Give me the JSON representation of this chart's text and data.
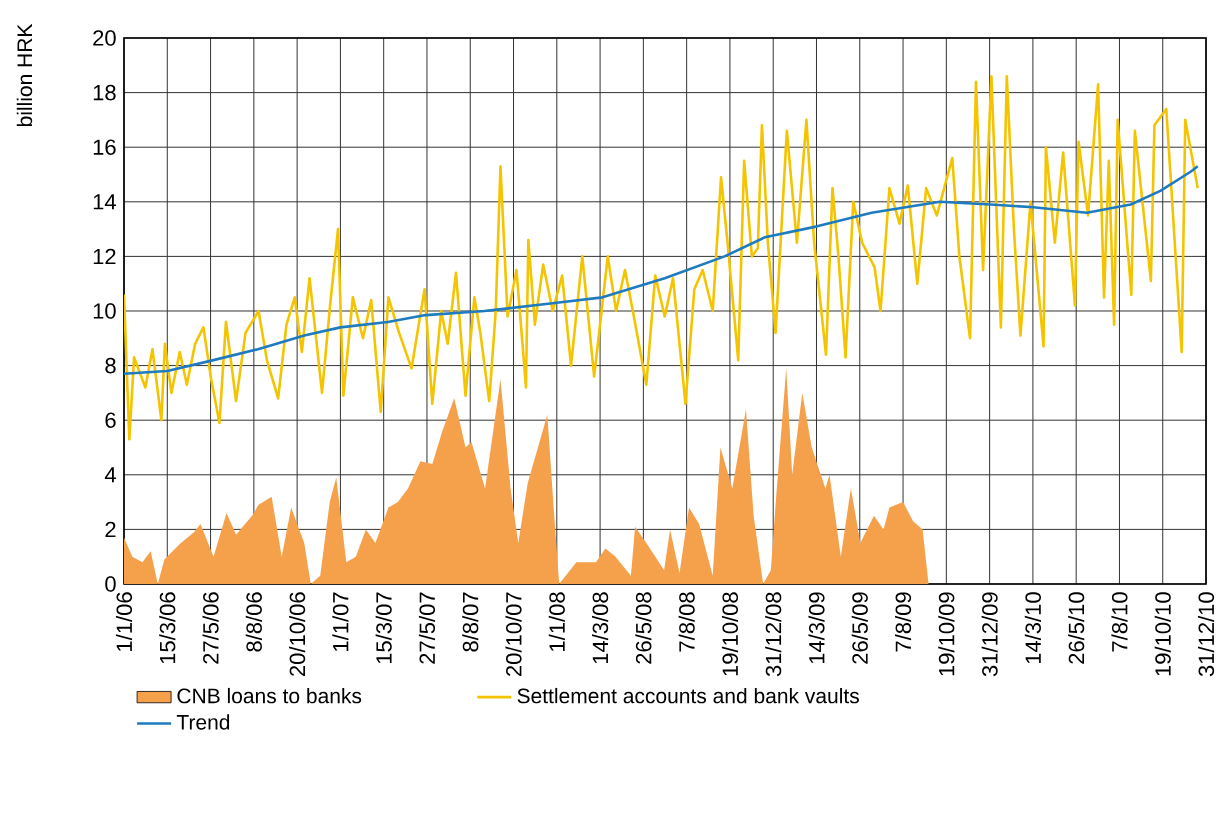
{
  "chart_data": {
    "type": "line",
    "ylabel": "billion HRK",
    "xlim": [
      "2006-01-01",
      "2010-12-31"
    ],
    "ylim": [
      0,
      20
    ],
    "yticks": [
      0,
      2,
      4,
      6,
      8,
      10,
      12,
      14,
      16,
      18,
      20
    ],
    "xticks": [
      {
        "value": "2006-01-01",
        "label": "1/1/06"
      },
      {
        "value": "2006-03-15",
        "label": "15/3/06"
      },
      {
        "value": "2006-05-27",
        "label": "27/5/06"
      },
      {
        "value": "2006-08-08",
        "label": "8/8/06"
      },
      {
        "value": "2006-10-20",
        "label": "20/10/06"
      },
      {
        "value": "2007-01-01",
        "label": "1/1/07"
      },
      {
        "value": "2007-03-15",
        "label": "15/3/07"
      },
      {
        "value": "2007-05-27",
        "label": "27/5/07"
      },
      {
        "value": "2007-08-08",
        "label": "8/8/07"
      },
      {
        "value": "2007-10-20",
        "label": "20/10/07"
      },
      {
        "value": "2008-01-01",
        "label": "1/1/08"
      },
      {
        "value": "2008-03-14",
        "label": "14/3/08"
      },
      {
        "value": "2008-05-26",
        "label": "26/5/08"
      },
      {
        "value": "2008-08-07",
        "label": "7/8/08"
      },
      {
        "value": "2008-10-19",
        "label": "19/10/08"
      },
      {
        "value": "2008-12-31",
        "label": "31/12/08"
      },
      {
        "value": "2009-03-14",
        "label": "14/3/09"
      },
      {
        "value": "2009-05-26",
        "label": "26/5/09"
      },
      {
        "value": "2009-08-07",
        "label": "7/8/09"
      },
      {
        "value": "2009-10-19",
        "label": "19/10/09"
      },
      {
        "value": "2009-12-31",
        "label": "31/12/09"
      },
      {
        "value": "2010-03-14",
        "label": "14/3/10"
      },
      {
        "value": "2010-05-26",
        "label": "26/5/10"
      },
      {
        "value": "2010-08-07",
        "label": "7/8/10"
      },
      {
        "value": "2010-10-19",
        "label": "19/10/10"
      },
      {
        "value": "2010-12-31",
        "label": "31/12/10"
      }
    ],
    "grid": true,
    "legend": "bottom",
    "series": [
      {
        "name": "CNB loans to banks",
        "type": "area",
        "color": "#f5a04a",
        "x": [
          "2006-01-01",
          "2006-01-15",
          "2006-02-01",
          "2006-02-15",
          "2006-02-27",
          "2006-03-10",
          "2006-04-07",
          "2006-04-29",
          "2006-05-10",
          "2006-06-01",
          "2006-06-23",
          "2006-07-09",
          "2006-08-05",
          "2006-08-16",
          "2006-09-07",
          "2006-09-24",
          "2006-10-10",
          "2006-11-01",
          "2006-11-12",
          "2006-11-28",
          "2006-12-14",
          "2006-12-25",
          "2007-01-11",
          "2007-01-27",
          "2007-02-13",
          "2007-03-01",
          "2007-03-23",
          "2007-04-08",
          "2007-04-25",
          "2007-05-16",
          "2007-06-05",
          "2007-06-22",
          "2007-07-12",
          "2007-07-31",
          "2007-08-10",
          "2007-09-02",
          "2007-09-28",
          "2007-10-15",
          "2007-10-28",
          "2007-11-13",
          "2007-12-16",
          "2007-12-26",
          "2008-01-05",
          "2008-02-03",
          "2008-03-07",
          "2008-03-23",
          "2008-04-09",
          "2008-05-05",
          "2008-05-12",
          "2008-05-31",
          "2008-06-30",
          "2008-07-10",
          "2008-07-26",
          "2008-08-11",
          "2008-08-28",
          "2008-09-20",
          "2008-10-03",
          "2008-10-23",
          "2008-11-15",
          "2008-11-28",
          "2008-12-14",
          "2008-12-27",
          "2009-01-06",
          "2009-01-22",
          "2009-02-01",
          "2009-02-18",
          "2009-03-06",
          "2009-03-29",
          "2009-04-05",
          "2009-04-24",
          "2009-05-11",
          "2009-05-27",
          "2009-06-19",
          "2009-07-05",
          "2009-07-15",
          "2009-08-07",
          "2009-08-24",
          "2009-09-09",
          "2009-09-19"
        ],
        "values": [
          1.7,
          1.0,
          0.8,
          1.2,
          0,
          0.9,
          1.5,
          1.9,
          2.2,
          1.0,
          2.6,
          1.8,
          2.5,
          2.9,
          3.2,
          1.0,
          2.8,
          1.5,
          0,
          0.3,
          3.0,
          3.9,
          0.8,
          1.0,
          2.0,
          1.5,
          2.8,
          3.0,
          3.5,
          4.5,
          4.4,
          5.6,
          6.8,
          5.0,
          5.2,
          3.5,
          7.5,
          3.5,
          1.5,
          3.7,
          6.2,
          3.0,
          0,
          0.8,
          0.8,
          1.3,
          1.0,
          0.3,
          2.1,
          1.5,
          0.5,
          2.0,
          0.4,
          2.8,
          2.2,
          0.3,
          5.0,
          3.5,
          6.4,
          2.5,
          0,
          0.5,
          3.5,
          7.9,
          4.0,
          7.0,
          5.0,
          3.5,
          4.0,
          1.0,
          3.5,
          1.5,
          2.5,
          2.0,
          2.8,
          3.0,
          2.3,
          2.0,
          0
        ]
      },
      {
        "name": "Settlement accounts and bank vaults",
        "color": "#f5c400",
        "x": [
          "2006-01-01",
          "2006-01-10",
          "2006-01-18",
          "2006-02-06",
          "2006-02-18",
          "2006-03-05",
          "2006-03-11",
          "2006-03-22",
          "2006-04-05",
          "2006-04-17",
          "2006-05-01",
          "2006-05-15",
          "2006-05-28",
          "2006-06-11",
          "2006-06-22",
          "2006-07-09",
          "2006-07-25",
          "2006-08-16",
          "2006-08-30",
          "2006-09-18",
          "2006-10-02",
          "2006-10-16",
          "2006-10-28",
          "2006-11-10",
          "2006-12-01",
          "2006-12-15",
          "2006-12-28",
          "2007-01-06",
          "2007-01-22",
          "2007-02-08",
          "2007-02-22",
          "2007-03-10",
          "2007-03-23",
          "2007-04-10",
          "2007-05-01",
          "2007-05-23",
          "2007-06-05",
          "2007-06-20",
          "2007-07-01",
          "2007-07-15",
          "2007-07-31",
          "2007-08-15",
          "2007-08-25",
          "2007-09-09",
          "2007-09-20",
          "2007-09-28",
          "2007-10-10",
          "2007-10-25",
          "2007-11-10",
          "2007-11-14",
          "2007-11-25",
          "2007-12-09",
          "2007-12-25",
          "2008-01-10",
          "2008-01-25",
          "2008-02-13",
          "2008-03-04",
          "2008-03-27",
          "2008-04-10",
          "2008-04-25",
          "2008-05-10",
          "2008-05-31",
          "2008-06-15",
          "2008-07-01",
          "2008-07-15",
          "2008-08-05",
          "2008-08-20",
          "2008-09-03",
          "2008-09-20",
          "2008-10-04",
          "2008-10-15",
          "2008-11-02",
          "2008-11-12",
          "2008-11-25",
          "2008-12-05",
          "2008-12-12",
          "2008-12-22",
          "2009-01-04",
          "2009-01-23",
          "2009-02-09",
          "2009-02-25",
          "2009-03-10",
          "2009-03-30",
          "2009-04-10",
          "2009-04-20",
          "2009-05-02",
          "2009-05-15",
          "2009-05-30",
          "2009-06-20",
          "2009-06-30",
          "2009-07-15",
          "2009-08-01",
          "2009-08-15",
          "2009-08-31",
          "2009-09-15",
          "2009-10-03",
          "2009-10-29",
          "2009-11-10",
          "2009-11-28",
          "2009-12-08",
          "2009-12-20",
          "2010-01-03",
          "2010-01-19",
          "2010-01-29",
          "2010-02-10",
          "2010-02-21",
          "2010-03-10",
          "2010-04-01",
          "2010-04-05",
          "2010-04-20",
          "2010-05-04",
          "2010-05-24",
          "2010-05-30",
          "2010-06-15",
          "2010-07-02",
          "2010-07-12",
          "2010-07-20",
          "2010-07-29",
          "2010-08-04",
          "2010-08-27",
          "2010-09-02",
          "2010-09-29",
          "2010-10-05",
          "2010-10-25",
          "2010-11-20",
          "2010-11-26",
          "2010-12-17"
        ],
        "values": [
          10.6,
          5.3,
          8.3,
          7.2,
          8.6,
          6.0,
          8.8,
          7.0,
          8.5,
          7.3,
          8.8,
          9.4,
          7.5,
          5.9,
          9.6,
          6.7,
          9.2,
          10.0,
          8.2,
          6.8,
          9.5,
          10.5,
          8.5,
          11.2,
          7.0,
          10.3,
          13.0,
          6.9,
          10.5,
          9.0,
          10.4,
          6.3,
          10.5,
          9.2,
          7.9,
          10.8,
          6.6,
          10.0,
          8.8,
          11.4,
          6.9,
          10.5,
          9.2,
          6.7,
          10.0,
          15.3,
          9.8,
          11.5,
          7.2,
          12.6,
          9.5,
          11.7,
          10.0,
          11.3,
          8.0,
          12.0,
          7.6,
          12.0,
          10.0,
          11.5,
          9.8,
          7.3,
          11.3,
          9.8,
          11.2,
          6.6,
          10.8,
          11.5,
          10.0,
          14.9,
          12.5,
          8.2,
          15.5,
          12.0,
          12.3,
          16.8,
          12.5,
          9.2,
          16.6,
          12.5,
          17.0,
          12.5,
          8.4,
          14.5,
          12.0,
          8.3,
          14.0,
          12.5,
          11.6,
          10.0,
          14.5,
          13.2,
          14.6,
          11.0,
          14.5,
          13.5,
          15.6,
          12.0,
          9.0,
          18.4,
          11.5,
          18.6,
          9.4,
          18.6,
          13.0,
          9.1,
          14.0,
          8.7,
          16.0,
          12.5,
          15.8,
          10.2,
          16.2,
          13.5,
          18.3,
          10.5,
          15.5,
          9.5,
          17.0,
          10.6,
          16.6,
          11.1,
          16.8,
          17.4,
          8.5,
          17.0,
          14.5
        ]
      },
      {
        "name": "Trend",
        "color": "#1f7bbf",
        "x": [
          "2006-01-01",
          "2006-03-15",
          "2006-06-01",
          "2006-08-15",
          "2006-11-01",
          "2007-01-01",
          "2007-03-22",
          "2007-05-25",
          "2007-09-01",
          "2008-01-01",
          "2008-03-18",
          "2008-07-01",
          "2008-10-10",
          "2008-12-17",
          "2009-03-15",
          "2009-06-15",
          "2009-10-08",
          "2010-01-01",
          "2010-03-15",
          "2010-06-13",
          "2010-08-26",
          "2010-10-15",
          "2010-12-05",
          "2010-12-17"
        ],
        "values": [
          7.7,
          7.8,
          8.2,
          8.6,
          9.1,
          9.4,
          9.6,
          9.85,
          10.0,
          10.3,
          10.5,
          11.2,
          12.0,
          12.7,
          13.1,
          13.6,
          14.0,
          13.9,
          13.8,
          13.6,
          13.9,
          14.4,
          15.1,
          15.3
        ]
      }
    ]
  }
}
